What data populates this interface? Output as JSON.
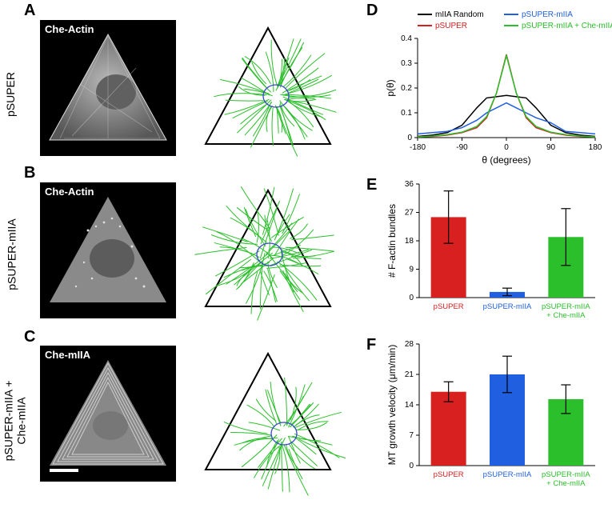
{
  "panels": {
    "A": {
      "label": "A",
      "row_label": "pSUPER",
      "tag": "Che-Actin"
    },
    "B": {
      "label": "B",
      "row_label": "pSUPER-mIIA",
      "tag": "Che-Actin"
    },
    "C": {
      "label": "C",
      "row_label": "pSUPER-mIIA +\nChe-mIIA",
      "tag": "Che-mIIA"
    },
    "D": {
      "label": "D"
    },
    "E": {
      "label": "E"
    },
    "F": {
      "label": "F"
    }
  },
  "micrograph_style": {
    "triangle_stroke": "#d0d0d0",
    "triangle_fill_grad_inner": "#e8e8e8",
    "triangle_fill_grad_outer": "#808080",
    "nucleus_fill": "#707070"
  },
  "trace_style": {
    "triangle_stroke": "#000000",
    "triangle_stroke_width": 2,
    "fiber_stroke": "#2bbf2b",
    "fiber_width": 1,
    "nucleus_stroke": "#3948c9",
    "nucleus_width": 1.3,
    "bg": "#ffffff"
  },
  "chartD": {
    "type": "line",
    "title": null,
    "xlabel": "θ (degrees)",
    "ylabel": "p(θ)",
    "xlim": [
      -180,
      180
    ],
    "xticks": [
      -180,
      -90,
      0,
      90,
      180
    ],
    "ylim": [
      0,
      0.4
    ],
    "yticks": [
      0,
      0.1,
      0.2,
      0.3,
      0.4
    ],
    "series": [
      {
        "name": "mIIA Random",
        "color": "#000000",
        "x": [
          -180,
          -150,
          -120,
          -90,
          -60,
          -40,
          -20,
          0,
          20,
          40,
          60,
          90,
          120,
          150,
          180
        ],
        "y": [
          0.005,
          0.01,
          0.02,
          0.05,
          0.12,
          0.16,
          0.165,
          0.17,
          0.165,
          0.16,
          0.12,
          0.05,
          0.02,
          0.01,
          0.005
        ]
      },
      {
        "name": "pSUPER",
        "color": "#d82020",
        "x": [
          -180,
          -150,
          -120,
          -90,
          -60,
          -40,
          -20,
          0,
          20,
          40,
          60,
          90,
          120,
          150,
          180
        ],
        "y": [
          0.003,
          0.005,
          0.01,
          0.02,
          0.04,
          0.08,
          0.18,
          0.335,
          0.18,
          0.08,
          0.04,
          0.02,
          0.01,
          0.005,
          0.003
        ]
      },
      {
        "name": "pSUPER-mIIA",
        "color": "#2060e0",
        "x": [
          -180,
          -150,
          -120,
          -90,
          -60,
          -40,
          -20,
          0,
          20,
          40,
          60,
          90,
          120,
          150,
          180
        ],
        "y": [
          0.015,
          0.02,
          0.025,
          0.04,
          0.07,
          0.1,
          0.12,
          0.14,
          0.12,
          0.1,
          0.08,
          0.06,
          0.025,
          0.02,
          0.015
        ]
      },
      {
        "name": "pSUPER-mIIA + Che-mIIA",
        "color": "#2bbf2b",
        "x": [
          -180,
          -150,
          -120,
          -90,
          -60,
          -40,
          -20,
          0,
          20,
          40,
          60,
          90,
          120,
          150,
          180
        ],
        "y": [
          0.003,
          0.006,
          0.012,
          0.022,
          0.045,
          0.085,
          0.18,
          0.33,
          0.18,
          0.085,
          0.045,
          0.022,
          0.012,
          0.006,
          0.003
        ]
      }
    ],
    "legend_fontsize": 10,
    "label_fontsize": 12,
    "tick_fontsize": 10,
    "line_width": 1.5,
    "bg": "#ffffff"
  },
  "chartE": {
    "type": "bar",
    "ylabel": "# F-actin bundles",
    "ylim": [
      0,
      36
    ],
    "yticks": [
      0,
      9,
      18,
      27,
      36
    ],
    "categories": [
      "pSUPER",
      "pSUPER-mIIA",
      "pSUPER-mIIA\n+ Che-mIIA"
    ],
    "values": [
      25.5,
      1.8,
      19.2
    ],
    "errors": [
      8.3,
      1.2,
      9.0
    ],
    "bar_colors": [
      "#d82020",
      "#2060e0",
      "#2bbf2b"
    ],
    "cat_colors": [
      "#d82020",
      "#2060e0",
      "#2bbf2b"
    ],
    "bar_width": 0.6,
    "bg": "#ffffff",
    "error_color": "#000000",
    "error_width": 1.2,
    "label_fontsize": 12,
    "tick_fontsize": 10
  },
  "chartF": {
    "type": "bar",
    "ylabel": "MT growth velocity (μm/min)",
    "ylim": [
      0,
      28
    ],
    "yticks": [
      0,
      7,
      14,
      21,
      28
    ],
    "categories": [
      "pSUPER",
      "pSUPER-mIIA",
      "pSUPER-mIIA\n+ Che-mIIA"
    ],
    "values": [
      17.0,
      21.0,
      15.3
    ],
    "errors": [
      2.3,
      4.2,
      3.3
    ],
    "bar_colors": [
      "#d82020",
      "#2060e0",
      "#2bbf2b"
    ],
    "cat_colors": [
      "#d82020",
      "#2060e0",
      "#2bbf2b"
    ],
    "bar_width": 0.6,
    "bg": "#ffffff",
    "error_color": "#000000",
    "error_width": 1.2,
    "label_fontsize": 12,
    "tick_fontsize": 10
  }
}
